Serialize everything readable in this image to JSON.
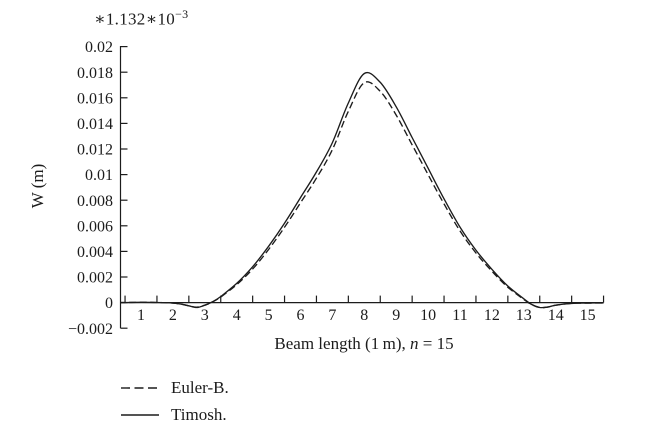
{
  "chart_data": {
    "type": "line",
    "scale_annotation": {
      "prefix": "∗1.132∗10",
      "exponent": "−3"
    },
    "ylabel": "W (m)",
    "xlabel": {
      "prefix": "Beam length (1 m), ",
      "var": "n",
      "suffix": " = 15"
    },
    "x_axis": {
      "min": 0.3,
      "max": 15.5,
      "tick_positions": [
        0.5,
        1.5,
        2.5,
        3.5,
        4.5,
        5.5,
        6.5,
        7.5,
        8.5,
        9.5,
        10.5,
        11.5,
        12.5,
        13.5,
        14.5,
        15.5
      ],
      "label_positions": [
        1,
        2,
        3,
        4,
        5,
        6,
        7,
        8,
        9,
        10,
        11,
        12,
        13,
        14,
        15
      ],
      "labels": [
        "1",
        "2",
        "3",
        "4",
        "5",
        "6",
        "7",
        "8",
        "9",
        "10",
        "11",
        "12",
        "13",
        "14",
        "15"
      ]
    },
    "y_axis": {
      "min": -0.002,
      "max": 0.02,
      "zero_line_is_x_axis": true,
      "tick_values": [
        0.02,
        0.018,
        0.016,
        0.014,
        0.012,
        0.01,
        0.008,
        0.006,
        0.004,
        0.002,
        0,
        -0.002
      ],
      "labels": [
        "0.02",
        "0.018",
        "0.016",
        "0.014",
        "0.012",
        "0.01",
        "0.008",
        "0.006",
        "0.004",
        "0.002",
        "0",
        "−0.002"
      ]
    },
    "series": [
      {
        "name": "Euler-B.",
        "style": "dashed",
        "points": [
          [
            0.3,
            0
          ],
          [
            1,
            2e-05
          ],
          [
            1.5,
            1e-05
          ],
          [
            2,
            -4e-05
          ],
          [
            2.25,
            -0.00012
          ],
          [
            2.5,
            -0.00025
          ],
          [
            2.75,
            -0.00036
          ],
          [
            3,
            -0.0002
          ],
          [
            3.25,
            6e-05
          ],
          [
            3.5,
            0.00044
          ],
          [
            4,
            0.0014
          ],
          [
            4.5,
            0.00262
          ],
          [
            5,
            0.00415
          ],
          [
            5.5,
            0.00588
          ],
          [
            6,
            0.0078
          ],
          [
            6.5,
            0.00972
          ],
          [
            7,
            0.01195
          ],
          [
            7.5,
            0.01495
          ],
          [
            8,
            0.01718
          ],
          [
            8.5,
            0.0165
          ],
          [
            9,
            0.01465
          ],
          [
            9.5,
            0.01233
          ],
          [
            10,
            0.01
          ],
          [
            10.5,
            0.0077
          ],
          [
            11,
            0.0056
          ],
          [
            11.5,
            0.00388
          ],
          [
            12,
            0.00245
          ],
          [
            12.5,
            0.0012
          ],
          [
            13,
            0.00025
          ],
          [
            13.25,
            -0.00016
          ],
          [
            13.5,
            -0.00038
          ],
          [
            13.75,
            -0.00035
          ],
          [
            14,
            -0.0002
          ],
          [
            14.5,
            -6e-05
          ],
          [
            15,
            -4e-05
          ],
          [
            15.5,
            -2e-05
          ]
        ]
      },
      {
        "name": "Timosh.",
        "style": "solid",
        "points": [
          [
            0.3,
            0
          ],
          [
            1,
            2e-05
          ],
          [
            1.5,
            1e-05
          ],
          [
            2,
            -4e-05
          ],
          [
            2.25,
            -0.00012
          ],
          [
            2.5,
            -0.00025
          ],
          [
            2.75,
            -0.00038
          ],
          [
            3,
            -0.0002
          ],
          [
            3.25,
            8e-05
          ],
          [
            3.5,
            0.00048
          ],
          [
            4,
            0.0015
          ],
          [
            4.5,
            0.0028
          ],
          [
            5,
            0.0044
          ],
          [
            5.5,
            0.0062
          ],
          [
            6,
            0.0082
          ],
          [
            6.5,
            0.0102
          ],
          [
            7,
            0.0125
          ],
          [
            7.5,
            0.0156
          ],
          [
            8,
            0.0179
          ],
          [
            8.5,
            0.0172
          ],
          [
            9,
            0.0153
          ],
          [
            9.5,
            0.0129
          ],
          [
            10,
            0.0105
          ],
          [
            10.5,
            0.0081
          ],
          [
            11,
            0.0059
          ],
          [
            11.5,
            0.0041
          ],
          [
            12,
            0.0026
          ],
          [
            12.5,
            0.0013
          ],
          [
            13,
            0.0003
          ],
          [
            13.25,
            -0.00015
          ],
          [
            13.5,
            -0.00038
          ],
          [
            13.75,
            -0.00035
          ],
          [
            14,
            -0.0002
          ],
          [
            14.5,
            -6e-05
          ],
          [
            15,
            -4e-05
          ],
          [
            15.5,
            -2e-05
          ]
        ]
      }
    ],
    "legend": {
      "position": "bottom-left",
      "entries": [
        {
          "label": "Euler-B.",
          "style": "dashed"
        },
        {
          "label": "Timosh.",
          "style": "solid"
        }
      ]
    },
    "grid": false,
    "colors": {
      "line": "#1c1c1c",
      "text": "#1c1c1c",
      "background": "#ffffff"
    }
  }
}
